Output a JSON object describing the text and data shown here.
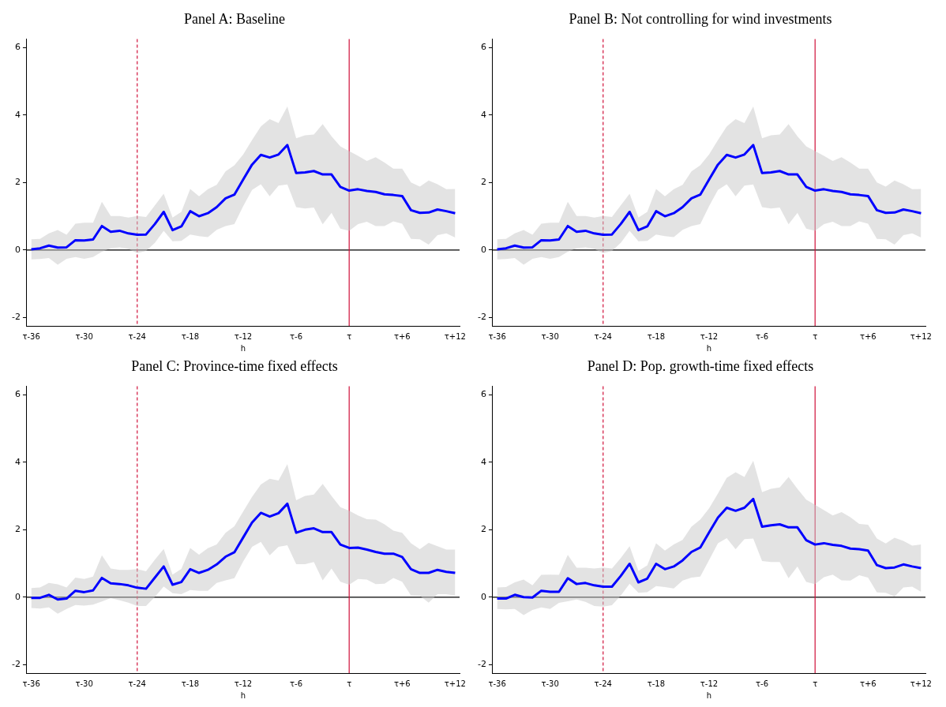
{
  "chart_data": [
    {
      "type": "line",
      "title": "Panel A: Baseline",
      "xlabel": "h",
      "categories": [
        "τ-36",
        null,
        null,
        null,
        null,
        null,
        "τ-30",
        null,
        null,
        null,
        null,
        null,
        "τ-24",
        null,
        null,
        null,
        null,
        null,
        "τ-18",
        null,
        null,
        null,
        null,
        null,
        "τ-12",
        null,
        null,
        null,
        null,
        null,
        "τ-6",
        null,
        null,
        null,
        null,
        null,
        "τ",
        null,
        null,
        null,
        null,
        null,
        "τ+6",
        null,
        null,
        null,
        null,
        null,
        "τ+12"
      ],
      "ylim": [
        -2.25,
        6.25
      ],
      "yticks": [
        -2,
        0,
        2,
        4,
        6
      ],
      "grid": false,
      "legend": false,
      "marker": "none",
      "series": [
        {
          "color": "#0000ff",
          "values": [
            0.02,
            0.05,
            0.13,
            0.07,
            0.08,
            0.29,
            0.28,
            0.31,
            0.71,
            0.54,
            0.57,
            0.49,
            0.45,
            0.46,
            0.77,
            1.13,
            0.59,
            0.7,
            1.15,
            1.0,
            1.09,
            1.27,
            1.53,
            1.64,
            2.09,
            2.53,
            2.82,
            2.74,
            2.83,
            3.11,
            2.28,
            2.3,
            2.34,
            2.24,
            2.24,
            1.87,
            1.76,
            1.8,
            1.75,
            1.72,
            1.65,
            1.63,
            1.6,
            1.18,
            1.1,
            1.11,
            1.2,
            1.15,
            1.09
          ],
          "upper": [
            0.32,
            0.33,
            0.49,
            0.59,
            0.45,
            0.78,
            0.81,
            0.81,
            1.43,
            1.01,
            1.01,
            0.96,
            1.01,
            0.98,
            1.32,
            1.67,
            0.96,
            1.13,
            1.81,
            1.59,
            1.8,
            1.93,
            2.33,
            2.51,
            2.83,
            3.26,
            3.66,
            3.88,
            3.76,
            4.25,
            3.31,
            3.4,
            3.42,
            3.73,
            3.37,
            3.07,
            2.93,
            2.79,
            2.64,
            2.75,
            2.59,
            2.41,
            2.41,
            2.0,
            1.88,
            2.06,
            1.95,
            1.8,
            1.81
          ],
          "lower": [
            -0.28,
            -0.27,
            -0.24,
            -0.44,
            -0.26,
            -0.21,
            -0.26,
            -0.21,
            -0.05,
            0.05,
            0.08,
            0.03,
            -0.09,
            -0.03,
            0.21,
            0.57,
            0.26,
            0.27,
            0.46,
            0.41,
            0.38,
            0.6,
            0.71,
            0.77,
            1.3,
            1.78,
            1.95,
            1.59,
            1.91,
            1.94,
            1.27,
            1.23,
            1.26,
            0.76,
            1.1,
            0.63,
            0.57,
            0.77,
            0.84,
            0.71,
            0.71,
            0.85,
            0.78,
            0.33,
            0.32,
            0.16,
            0.44,
            0.49,
            0.37
          ]
        }
      ],
      "ref_lines": [
        {
          "axis": "y",
          "value": 0,
          "color": "#000000",
          "line_style": "solid"
        },
        {
          "axis": "x",
          "value": "τ-24",
          "color": "#d0103a",
          "line_style": "dashed"
        },
        {
          "axis": "x",
          "value": "τ",
          "color": "#d0103a",
          "line_style": "solid"
        }
      ]
    },
    {
      "type": "line",
      "title": "Panel B: Not controlling for wind investments",
      "xlabel": "h",
      "categories": [
        "τ-36",
        null,
        null,
        null,
        null,
        null,
        "τ-30",
        null,
        null,
        null,
        null,
        null,
        "τ-24",
        null,
        null,
        null,
        null,
        null,
        "τ-18",
        null,
        null,
        null,
        null,
        null,
        "τ-12",
        null,
        null,
        null,
        null,
        null,
        "τ-6",
        null,
        null,
        null,
        null,
        null,
        "τ",
        null,
        null,
        null,
        null,
        null,
        "τ+6",
        null,
        null,
        null,
        null,
        null,
        "τ+12"
      ],
      "ylim": [
        -2.25,
        6.25
      ],
      "yticks": [
        -2,
        0,
        2,
        4,
        6
      ],
      "grid": false,
      "legend": false,
      "marker": "none",
      "series": [
        {
          "color": "#0000ff",
          "values": [
            0.02,
            0.05,
            0.13,
            0.07,
            0.08,
            0.29,
            0.28,
            0.31,
            0.71,
            0.54,
            0.57,
            0.49,
            0.45,
            0.46,
            0.77,
            1.13,
            0.59,
            0.7,
            1.15,
            1.0,
            1.09,
            1.27,
            1.53,
            1.64,
            2.09,
            2.53,
            2.82,
            2.74,
            2.83,
            3.11,
            2.28,
            2.3,
            2.34,
            2.24,
            2.24,
            1.87,
            1.76,
            1.8,
            1.75,
            1.72,
            1.65,
            1.63,
            1.6,
            1.18,
            1.1,
            1.11,
            1.2,
            1.15,
            1.09
          ],
          "upper": [
            0.32,
            0.33,
            0.49,
            0.59,
            0.45,
            0.78,
            0.81,
            0.81,
            1.43,
            1.01,
            1.01,
            0.96,
            1.01,
            0.98,
            1.32,
            1.67,
            0.96,
            1.13,
            1.81,
            1.59,
            1.8,
            1.93,
            2.33,
            2.51,
            2.83,
            3.26,
            3.66,
            3.88,
            3.76,
            4.25,
            3.31,
            3.4,
            3.42,
            3.73,
            3.37,
            3.07,
            2.93,
            2.79,
            2.64,
            2.75,
            2.59,
            2.41,
            2.41,
            2.0,
            1.88,
            2.06,
            1.95,
            1.8,
            1.81
          ],
          "lower": [
            -0.28,
            -0.27,
            -0.24,
            -0.44,
            -0.26,
            -0.21,
            -0.26,
            -0.21,
            -0.05,
            0.05,
            0.08,
            0.03,
            -0.09,
            -0.03,
            0.21,
            0.57,
            0.26,
            0.27,
            0.46,
            0.41,
            0.38,
            0.6,
            0.71,
            0.77,
            1.3,
            1.78,
            1.95,
            1.59,
            1.91,
            1.94,
            1.27,
            1.23,
            1.26,
            0.76,
            1.1,
            0.63,
            0.57,
            0.77,
            0.84,
            0.71,
            0.71,
            0.85,
            0.78,
            0.33,
            0.32,
            0.16,
            0.44,
            0.49,
            0.37
          ]
        }
      ],
      "ref_lines": [
        {
          "axis": "y",
          "value": 0,
          "color": "#000000",
          "line_style": "solid"
        },
        {
          "axis": "x",
          "value": "τ-24",
          "color": "#d0103a",
          "line_style": "dashed"
        },
        {
          "axis": "x",
          "value": "τ",
          "color": "#d0103a",
          "line_style": "solid"
        }
      ]
    },
    {
      "type": "line",
      "title": "Panel C: Province-time fixed effects",
      "xlabel": "h",
      "categories": [
        "τ-36",
        null,
        null,
        null,
        null,
        null,
        "τ-30",
        null,
        null,
        null,
        null,
        null,
        "τ-24",
        null,
        null,
        null,
        null,
        null,
        "τ-18",
        null,
        null,
        null,
        null,
        null,
        "τ-12",
        null,
        null,
        null,
        null,
        null,
        "τ-6",
        null,
        null,
        null,
        null,
        null,
        "τ",
        null,
        null,
        null,
        null,
        null,
        "τ+6",
        null,
        null,
        null,
        null,
        null,
        "τ+12"
      ],
      "ylim": [
        -2.25,
        6.25
      ],
      "yticks": [
        -2,
        0,
        2,
        4,
        6
      ],
      "grid": false,
      "legend": false,
      "marker": "none",
      "series": [
        {
          "color": "#0000ff",
          "values": [
            -0.02,
            -0.02,
            0.07,
            -0.07,
            -0.04,
            0.19,
            0.15,
            0.2,
            0.57,
            0.41,
            0.39,
            0.35,
            0.28,
            0.25,
            0.58,
            0.91,
            0.37,
            0.45,
            0.83,
            0.72,
            0.81,
            0.97,
            1.2,
            1.33,
            1.77,
            2.21,
            2.5,
            2.39,
            2.49,
            2.77,
            1.91,
            2.0,
            2.04,
            1.93,
            1.93,
            1.56,
            1.46,
            1.47,
            1.41,
            1.34,
            1.29,
            1.29,
            1.19,
            0.83,
            0.72,
            0.72,
            0.81,
            0.75,
            0.72
          ],
          "upper": [
            0.27,
            0.29,
            0.42,
            0.38,
            0.29,
            0.58,
            0.54,
            0.61,
            1.24,
            0.85,
            0.81,
            0.81,
            0.83,
            0.77,
            1.11,
            1.43,
            0.67,
            0.84,
            1.46,
            1.26,
            1.45,
            1.56,
            1.91,
            2.1,
            2.54,
            2.97,
            3.34,
            3.51,
            3.46,
            3.94,
            2.87,
            3.0,
            3.04,
            3.36,
            3.0,
            2.67,
            2.56,
            2.42,
            2.31,
            2.3,
            2.16,
            1.97,
            1.91,
            1.6,
            1.42,
            1.61,
            1.51,
            1.41,
            1.41
          ],
          "lower": [
            -0.32,
            -0.34,
            -0.3,
            -0.49,
            -0.35,
            -0.23,
            -0.25,
            -0.22,
            -0.13,
            -0.03,
            -0.09,
            -0.16,
            -0.26,
            -0.26,
            0.01,
            0.32,
            0.12,
            0.09,
            0.21,
            0.19,
            0.19,
            0.42,
            0.5,
            0.56,
            1.06,
            1.49,
            1.64,
            1.24,
            1.49,
            1.54,
            0.98,
            0.98,
            1.04,
            0.5,
            0.85,
            0.46,
            0.37,
            0.54,
            0.52,
            0.39,
            0.4,
            0.57,
            0.46,
            0.05,
            0.04,
            -0.16,
            0.09,
            0.09,
            0.05
          ]
        }
      ],
      "ref_lines": [
        {
          "axis": "y",
          "value": 0,
          "color": "#000000",
          "line_style": "solid"
        },
        {
          "axis": "x",
          "value": "τ-24",
          "color": "#d0103a",
          "line_style": "dashed"
        },
        {
          "axis": "x",
          "value": "τ",
          "color": "#d0103a",
          "line_style": "solid"
        }
      ]
    },
    {
      "type": "line",
      "title": "Panel D: Pop. growth-time fixed effects",
      "xlabel": "h",
      "categories": [
        "τ-36",
        null,
        null,
        null,
        null,
        null,
        "τ-30",
        null,
        null,
        null,
        null,
        null,
        "τ-24",
        null,
        null,
        null,
        null,
        null,
        "τ-18",
        null,
        null,
        null,
        null,
        null,
        "τ-12",
        null,
        null,
        null,
        null,
        null,
        "τ-6",
        null,
        null,
        null,
        null,
        null,
        "τ",
        null,
        null,
        null,
        null,
        null,
        "τ+6",
        null,
        null,
        null,
        null,
        null,
        "τ+12"
      ],
      "ylim": [
        -2.25,
        6.25
      ],
      "yticks": [
        -2,
        0,
        2,
        4,
        6
      ],
      "grid": false,
      "legend": false,
      "marker": "none",
      "series": [
        {
          "color": "#0000ff",
          "values": [
            -0.04,
            -0.04,
            0.07,
            0.0,
            -0.01,
            0.19,
            0.16,
            0.16,
            0.56,
            0.39,
            0.42,
            0.35,
            0.31,
            0.31,
            0.63,
            0.99,
            0.44,
            0.55,
            0.99,
            0.83,
            0.91,
            1.09,
            1.34,
            1.47,
            1.92,
            2.36,
            2.65,
            2.56,
            2.65,
            2.91,
            2.09,
            2.13,
            2.16,
            2.07,
            2.07,
            1.69,
            1.56,
            1.6,
            1.55,
            1.52,
            1.44,
            1.42,
            1.38,
            0.95,
            0.86,
            0.88,
            0.97,
            0.91,
            0.86
          ],
          "upper": [
            0.29,
            0.3,
            0.44,
            0.52,
            0.35,
            0.66,
            0.67,
            0.66,
            1.25,
            0.87,
            0.87,
            0.85,
            0.88,
            0.85,
            1.16,
            1.51,
            0.78,
            0.94,
            1.6,
            1.38,
            1.56,
            1.7,
            2.09,
            2.3,
            2.63,
            3.07,
            3.54,
            3.7,
            3.56,
            4.04,
            3.11,
            3.21,
            3.25,
            3.56,
            3.21,
            2.89,
            2.74,
            2.58,
            2.42,
            2.52,
            2.37,
            2.17,
            2.15,
            1.74,
            1.59,
            1.76,
            1.67,
            1.53,
            1.56
          ],
          "lower": [
            -0.35,
            -0.36,
            -0.35,
            -0.53,
            -0.38,
            -0.3,
            -0.35,
            -0.17,
            -0.12,
            -0.07,
            -0.14,
            -0.26,
            -0.28,
            -0.24,
            0.05,
            0.4,
            0.13,
            0.15,
            0.33,
            0.3,
            0.26,
            0.49,
            0.58,
            0.61,
            1.1,
            1.6,
            1.75,
            1.42,
            1.72,
            1.74,
            1.07,
            1.04,
            1.04,
            0.56,
            0.91,
            0.45,
            0.39,
            0.59,
            0.67,
            0.5,
            0.49,
            0.65,
            0.58,
            0.14,
            0.13,
            0.02,
            0.29,
            0.31,
            0.16
          ]
        }
      ],
      "ref_lines": [
        {
          "axis": "y",
          "value": 0,
          "color": "#000000",
          "line_style": "solid"
        },
        {
          "axis": "x",
          "value": "τ-24",
          "color": "#d0103a",
          "line_style": "dashed"
        },
        {
          "axis": "x",
          "value": "τ",
          "color": "#d0103a",
          "line_style": "solid"
        }
      ]
    }
  ]
}
